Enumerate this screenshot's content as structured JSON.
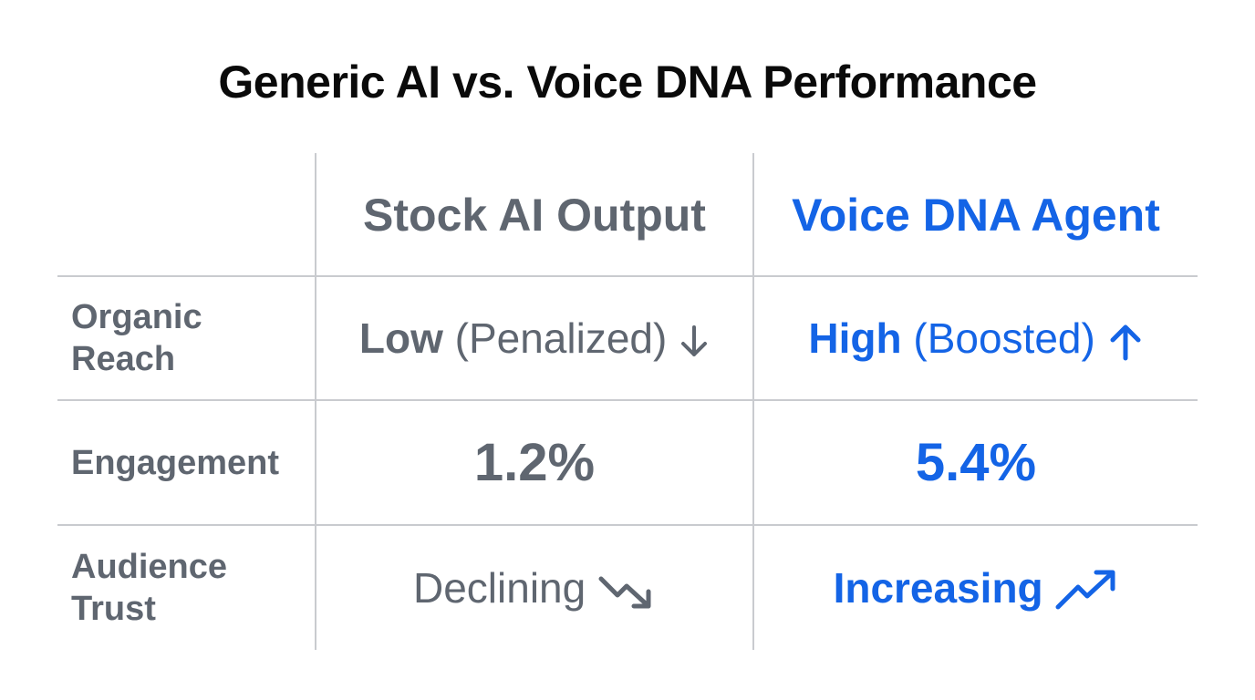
{
  "title": "Generic AI vs. Voice DNA Performance",
  "columns": {
    "stock": "Stock AI Output",
    "voice": "Voice DNA Agent"
  },
  "rows": {
    "reach": {
      "label": "Organic\nReach",
      "stock_strong": "Low",
      "stock_light": "(Penalized)",
      "stock_icon": "arrow-down-icon",
      "voice_strong": "High",
      "voice_light": "(Boosted)",
      "voice_icon": "arrow-up-icon"
    },
    "engagement": {
      "label": "Engagement",
      "stock": "1.2%",
      "voice": "5.4%"
    },
    "trust": {
      "label": "Audience\nTrust",
      "stock": "Declining",
      "stock_icon": "trend-down-icon",
      "voice": "Increasing",
      "voice_icon": "trend-up-icon"
    }
  },
  "colors": {
    "gray": "#5f6670",
    "blue": "#1464e6",
    "grid": "#c9cbcf"
  }
}
